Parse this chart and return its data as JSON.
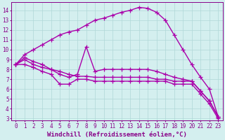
{
  "background_color": "#d4efef",
  "grid_color": "#b0d8d8",
  "line_color": "#aa00aa",
  "marker": "+",
  "markersize": 4,
  "linewidth": 1.0,
  "xlabel": "Windchill (Refroidissement éolien,°C)",
  "xlabel_color": "#880088",
  "xlabel_fontsize": 6.5,
  "tick_color": "#880088",
  "tick_fontsize": 5.5,
  "xlim": [
    -0.5,
    23.5
  ],
  "ylim": [
    2.8,
    14.8
  ],
  "yticks": [
    3,
    4,
    5,
    6,
    7,
    8,
    9,
    10,
    11,
    12,
    13,
    14
  ],
  "xticks": [
    0,
    1,
    2,
    3,
    4,
    5,
    6,
    7,
    8,
    9,
    10,
    11,
    12,
    13,
    14,
    15,
    16,
    17,
    18,
    19,
    20,
    21,
    22,
    23
  ],
  "lines": [
    {
      "x": [
        0,
        1,
        2,
        3,
        4,
        5,
        6,
        7,
        8,
        9,
        10,
        11,
        12,
        13,
        14,
        15,
        16,
        17,
        18,
        19,
        20,
        21,
        22,
        23
      ],
      "y": [
        8.5,
        9.5,
        10.0,
        10.5,
        11.0,
        11.5,
        11.8,
        12.0,
        12.5,
        13.0,
        13.2,
        13.5,
        13.8,
        14.0,
        14.3,
        14.2,
        13.8,
        13.0,
        11.5,
        10.0,
        8.5,
        7.2,
        6.0,
        3.2
      ]
    },
    {
      "x": [
        0,
        1,
        2,
        3,
        4,
        5,
        6,
        7,
        8,
        9,
        10,
        11,
        12,
        13,
        14,
        15,
        16,
        17,
        18,
        19,
        20,
        21,
        22,
        23
      ],
      "y": [
        8.5,
        9.2,
        8.8,
        8.5,
        8.0,
        7.5,
        7.2,
        7.5,
        10.3,
        7.8,
        8.0,
        8.0,
        8.0,
        8.0,
        8.0,
        8.0,
        7.8,
        7.5,
        7.2,
        7.0,
        6.8,
        5.8,
        4.8,
        3.2
      ]
    },
    {
      "x": [
        0,
        1,
        2,
        3,
        4,
        5,
        6,
        7,
        8,
        9,
        10,
        11,
        12,
        13,
        14,
        15,
        16,
        17,
        18,
        19,
        20,
        21,
        22,
        23
      ],
      "y": [
        8.5,
        9.0,
        8.5,
        8.2,
        8.0,
        7.8,
        7.5,
        7.3,
        7.3,
        7.2,
        7.2,
        7.2,
        7.2,
        7.2,
        7.2,
        7.2,
        7.0,
        7.0,
        6.8,
        6.8,
        6.8,
        5.8,
        4.8,
        3.2
      ]
    },
    {
      "x": [
        0,
        1,
        2,
        3,
        4,
        5,
        6,
        7,
        8,
        9,
        10,
        11,
        12,
        13,
        14,
        15,
        16,
        17,
        18,
        19,
        20,
        21,
        22,
        23
      ],
      "y": [
        8.5,
        8.5,
        8.2,
        7.8,
        7.5,
        6.5,
        6.5,
        7.0,
        7.0,
        6.8,
        6.8,
        6.8,
        6.8,
        6.8,
        6.8,
        6.8,
        6.8,
        6.8,
        6.5,
        6.5,
        6.5,
        5.5,
        4.5,
        3.0
      ]
    }
  ]
}
